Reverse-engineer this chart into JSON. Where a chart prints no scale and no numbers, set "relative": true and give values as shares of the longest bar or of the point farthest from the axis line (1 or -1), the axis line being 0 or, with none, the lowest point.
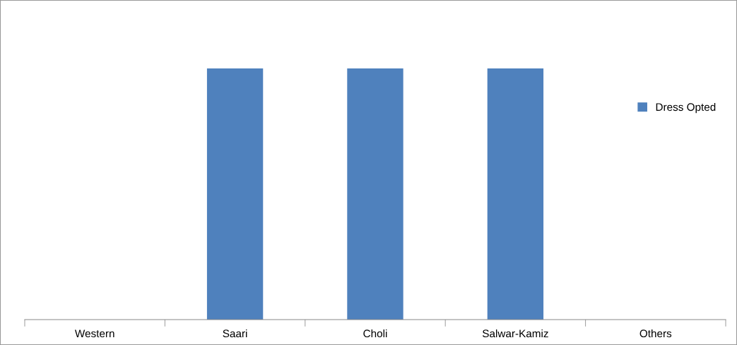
{
  "chart_data": {
    "type": "bar",
    "relative": true,
    "categories": [
      "Western",
      "Saari",
      "Choli",
      "Salwar-Kamiz",
      "Others"
    ],
    "series": [
      {
        "name": "Dress Opted",
        "color": "#4f81bd",
        "values": [
          0,
          1,
          1,
          1,
          0
        ]
      }
    ],
    "legend": "right",
    "grid": false
  }
}
